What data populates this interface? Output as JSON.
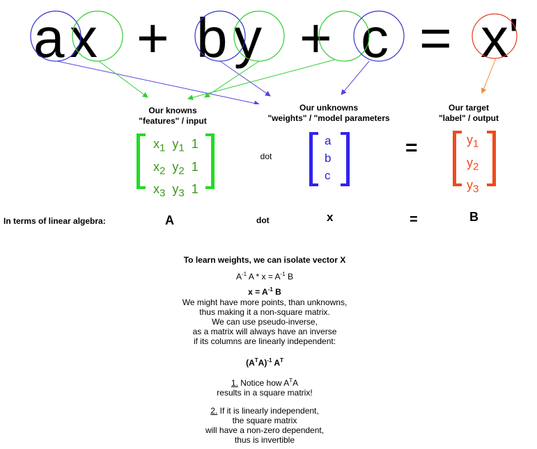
{
  "equation": {
    "terms": [
      "ax",
      "+",
      "by",
      "+",
      "c",
      "=",
      "x'"
    ],
    "colors": {
      "weights": "#3333cc",
      "features": "#33cc33",
      "target": "#e03a1e",
      "target_arrow": "#f08a3c"
    }
  },
  "knowns": {
    "title": "Our knowns",
    "subtitle": "\"features\" / input",
    "rows": [
      [
        "x1",
        "y1",
        "1"
      ],
      [
        "x2",
        "y2",
        "1"
      ],
      [
        "x3",
        "y3",
        "1"
      ]
    ],
    "color": "#3a9a1a",
    "bracket_color": "#22dd22"
  },
  "unknowns": {
    "title": "Our unknowns",
    "subtitle": "\"weights\" / \"model parameters",
    "rows": [
      "a",
      "b",
      "c"
    ],
    "color": "#2222cc"
  },
  "target": {
    "title": "Our target",
    "subtitle": "\"label\" / output",
    "rows": [
      "y1",
      "y2",
      "y3"
    ],
    "color": "#f04a1e"
  },
  "ops": {
    "dot": "dot",
    "equals": "="
  },
  "linear_algebra": {
    "label": "In terms of linear algebra:",
    "A": "A",
    "dot": "dot",
    "x": "x",
    "equals": "=",
    "B": "B"
  },
  "explanation": {
    "heading": "To learn weights, we can isolate vector X",
    "step1": "A-1 A * x = A-1 B",
    "step2": "x = A-1 B",
    "paragraph": [
      "We might have more points, than unknowns,",
      "thus making it a non-square matrix.",
      "We can use pseudo-inverse,",
      "as a matrix will always have an inverse",
      "if its columns are linearly independent:"
    ],
    "formula": "(ATA)-1 AT",
    "note1_num": "1.",
    "note1_text": "Notice how ATA",
    "note1_line2": "results in a square matrix!",
    "note2_num": "2.",
    "note2_lines": [
      "If it is linearly independent,",
      "the square matrix",
      "will have a non-zero dependent,",
      "thus is invertible"
    ]
  }
}
